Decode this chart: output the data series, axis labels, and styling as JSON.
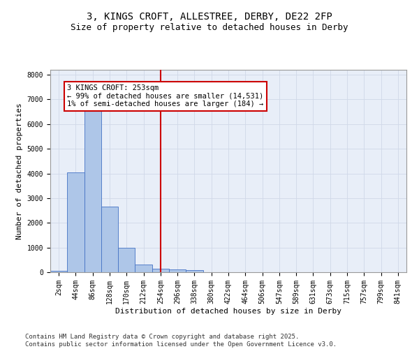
{
  "title_line1": "3, KINGS CROFT, ALLESTREE, DERBY, DE22 2FP",
  "title_line2": "Size of property relative to detached houses in Derby",
  "xlabel": "Distribution of detached houses by size in Derby",
  "ylabel": "Number of detached properties",
  "categories": [
    "2sqm",
    "44sqm",
    "86sqm",
    "128sqm",
    "170sqm",
    "212sqm",
    "254sqm",
    "296sqm",
    "338sqm",
    "380sqm",
    "422sqm",
    "464sqm",
    "506sqm",
    "547sqm",
    "589sqm",
    "631sqm",
    "673sqm",
    "715sqm",
    "757sqm",
    "799sqm",
    "841sqm"
  ],
  "values": [
    50,
    4050,
    6650,
    2650,
    1000,
    325,
    130,
    110,
    75,
    0,
    0,
    0,
    0,
    0,
    0,
    0,
    0,
    0,
    0,
    0,
    0
  ],
  "bar_color": "#aec6e8",
  "bar_edge_color": "#4472c4",
  "annotation_text_line1": "3 KINGS CROFT: 253sqm",
  "annotation_text_line2": "← 99% of detached houses are smaller (14,531)",
  "annotation_text_line3": "1% of semi-detached houses are larger (184) →",
  "annotation_box_color": "#ffffff",
  "annotation_box_edge_color": "#cc0000",
  "vline_color": "#cc0000",
  "vline_x_index": 6,
  "ylim": [
    0,
    8200
  ],
  "yticks": [
    0,
    1000,
    2000,
    3000,
    4000,
    5000,
    6000,
    7000,
    8000
  ],
  "grid_color": "#d0d8e8",
  "bg_color": "#e8eef8",
  "footer_line1": "Contains HM Land Registry data © Crown copyright and database right 2025.",
  "footer_line2": "Contains public sector information licensed under the Open Government Licence v3.0.",
  "title_fontsize": 10,
  "subtitle_fontsize": 9,
  "axis_label_fontsize": 8,
  "tick_fontsize": 7,
  "annotation_fontsize": 7.5,
  "footer_fontsize": 6.5
}
